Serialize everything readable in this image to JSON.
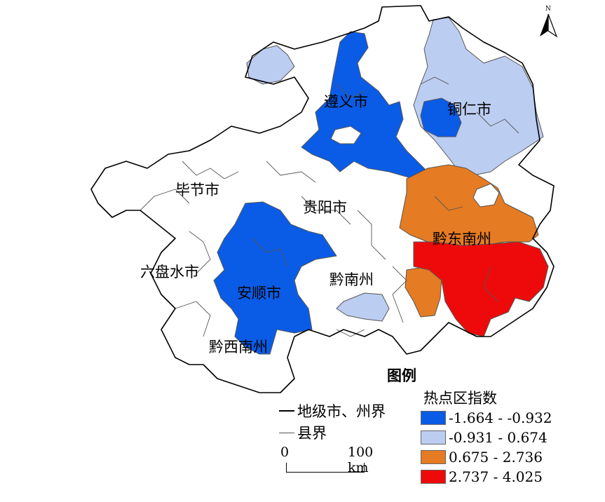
{
  "north_arrow": {
    "label": "N"
  },
  "city_labels": {
    "zunyi": "遵义市",
    "tongren": "铜仁市",
    "bijie": "毕节市",
    "guiyang": "贵阳市",
    "qiandongnan": "黔东南州",
    "liupanshui": "六盘水市",
    "qiannan": "黔南州",
    "anshun": "安顺市",
    "qianxinan": "黔西南州"
  },
  "legend": {
    "title": "图例",
    "subtitle": "热点区指数",
    "boundary_city": "地级市、州界",
    "boundary_county": "县界",
    "classes": [
      {
        "label": "-1.664 - -0.932",
        "color": "#0a5ce6"
      },
      {
        "label": "-0.931 - 0.674",
        "color": "#bccdf2"
      },
      {
        "label": "0.675 - 2.736",
        "color": "#e57b22"
      },
      {
        "label": "2.737 - 4.025",
        "color": "#ee0a0a"
      }
    ],
    "colors": {
      "none": "#ffffff"
    }
  },
  "scale_bar": {
    "start": "0",
    "end": "100 km"
  }
}
